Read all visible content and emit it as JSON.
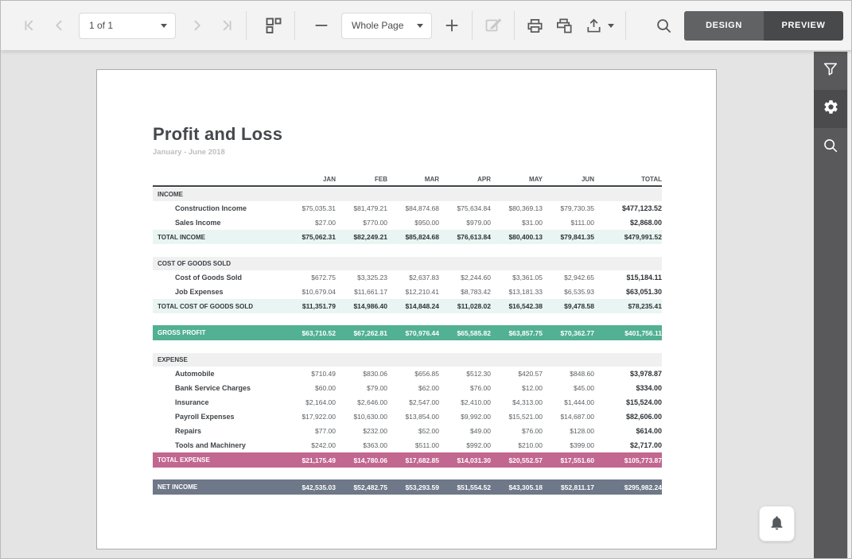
{
  "toolbar": {
    "page_indicator": "1 of 1",
    "zoom_mode": "Whole Page",
    "design_label": "DESIGN",
    "preview_label": "PREVIEW",
    "icons": [
      "first-page-icon",
      "previous-page-icon",
      "next-page-icon",
      "last-page-icon",
      "thumbnails-icon",
      "zoom-out-icon",
      "zoom-in-icon",
      "edit-icon",
      "print-icon",
      "print-preview-icon",
      "export-icon",
      "caret-down-icon",
      "search-icon"
    ]
  },
  "sidebar": {
    "icons": [
      {
        "name": "filter-icon",
        "active": false
      },
      {
        "name": "gear-icon",
        "active": true
      },
      {
        "name": "search-icon",
        "active": false
      }
    ]
  },
  "floating": {
    "icon": "bell-icon"
  },
  "report": {
    "title": "Profit and Loss",
    "subtitle": "January - June 2018",
    "columns": [
      "JAN",
      "FEB",
      "MAR",
      "APR",
      "MAY",
      "JUN",
      "TOTAL"
    ],
    "rows": [
      {
        "type": "section",
        "cells": [
          "INCOME",
          "",
          "",
          "",
          "",
          "",
          "",
          ""
        ]
      },
      {
        "type": "item",
        "cells": [
          "Construction Income",
          "$75,035.31",
          "$81,479.21",
          "$84,874.68",
          "$75,634.84",
          "$80,369.13",
          "$79,730.35",
          "$477,123.52"
        ]
      },
      {
        "type": "item",
        "cells": [
          "Sales Income",
          "$27.00",
          "$770.00",
          "$950.00",
          "$979.00",
          "$31.00",
          "$111.00",
          "$2,868.00"
        ]
      },
      {
        "type": "total",
        "cells": [
          "TOTAL INCOME",
          "$75,062.31",
          "$82,249.21",
          "$85,824.68",
          "$76,613.84",
          "$80,400.13",
          "$79,841.35",
          "$479,991.52"
        ]
      },
      {
        "type": "spacer"
      },
      {
        "type": "section",
        "cells": [
          "COST OF GOODS SOLD",
          "",
          "",
          "",
          "",
          "",
          "",
          ""
        ]
      },
      {
        "type": "item",
        "cells": [
          "Cost of Goods Sold",
          "$672.75",
          "$3,325.23",
          "$2,637.83",
          "$2,244.60",
          "$3,361.05",
          "$2,942.65",
          "$15,184.11"
        ]
      },
      {
        "type": "item",
        "cells": [
          "Job Expenses",
          "$10,679.04",
          "$11,661.17",
          "$12,210.41",
          "$8,783.42",
          "$13,181.33",
          "$6,535.93",
          "$63,051.30"
        ]
      },
      {
        "type": "total",
        "cells": [
          "TOTAL COST OF GOODS SOLD",
          "$11,351.79",
          "$14,986.40",
          "$14,848.24",
          "$11,028.02",
          "$16,542.38",
          "$9,478.58",
          "$78,235.41"
        ]
      },
      {
        "type": "spacer"
      },
      {
        "type": "green",
        "cells": [
          "GROSS PROFIT",
          "$63,710.52",
          "$67,262.81",
          "$70,976.44",
          "$65,585.82",
          "$63,857.75",
          "$70,362.77",
          "$401,756.11"
        ]
      },
      {
        "type": "spacer"
      },
      {
        "type": "section",
        "cells": [
          "EXPENSE",
          "",
          "",
          "",
          "",
          "",
          "",
          ""
        ]
      },
      {
        "type": "item",
        "cells": [
          "Automobile",
          "$710.49",
          "$830.06",
          "$656.85",
          "$512.30",
          "$420.57",
          "$848.60",
          "$3,978.87"
        ]
      },
      {
        "type": "item",
        "cells": [
          "Bank Service Charges",
          "$60.00",
          "$79.00",
          "$62.00",
          "$76.00",
          "$12.00",
          "$45.00",
          "$334.00"
        ]
      },
      {
        "type": "item",
        "cells": [
          "Insurance",
          "$2,164.00",
          "$2,646.00",
          "$2,547.00",
          "$2,410.00",
          "$4,313.00",
          "$1,444.00",
          "$15,524.00"
        ]
      },
      {
        "type": "item",
        "cells": [
          "Payroll Expenses",
          "$17,922.00",
          "$10,630.00",
          "$13,854.00",
          "$9,992.00",
          "$15,521.00",
          "$14,687.00",
          "$82,606.00"
        ]
      },
      {
        "type": "item",
        "cells": [
          "Repairs",
          "$77.00",
          "$232.00",
          "$52.00",
          "$49.00",
          "$76.00",
          "$128.00",
          "$614.00"
        ]
      },
      {
        "type": "item",
        "cells": [
          "Tools and Machinery",
          "$242.00",
          "$363.00",
          "$511.00",
          "$992.00",
          "$210.00",
          "$399.00",
          "$2,717.00"
        ]
      },
      {
        "type": "pink",
        "cells": [
          "TOTAL EXPENSE",
          "$21,175.49",
          "$14,780.06",
          "$17,682.85",
          "$14,031.30",
          "$20,552.57",
          "$17,551.60",
          "$105,773.87"
        ]
      },
      {
        "type": "spacer"
      },
      {
        "type": "slate",
        "cells": [
          "NET INCOME",
          "$42,535.03",
          "$52,482.75",
          "$53,293.59",
          "$51,554.52",
          "$43,305.18",
          "$52,811.17",
          "$295,982.24"
        ]
      }
    ]
  },
  "colors": {
    "gross_profit_band": "#52b093",
    "total_expense_band": "#c2678f",
    "net_income_band": "#6f7888",
    "subtotal_row_bg": "#e9f5f2",
    "section_row_bg": "#f0f0f1",
    "sidebar_bg": "#59595b",
    "sidebar_active_bg": "#4b4b4d",
    "design_button_bg": "#606264",
    "preview_button_bg": "#48494b",
    "toolbar_bg": "#f3f3f3",
    "canvas_bg": "#e4e4e4"
  }
}
